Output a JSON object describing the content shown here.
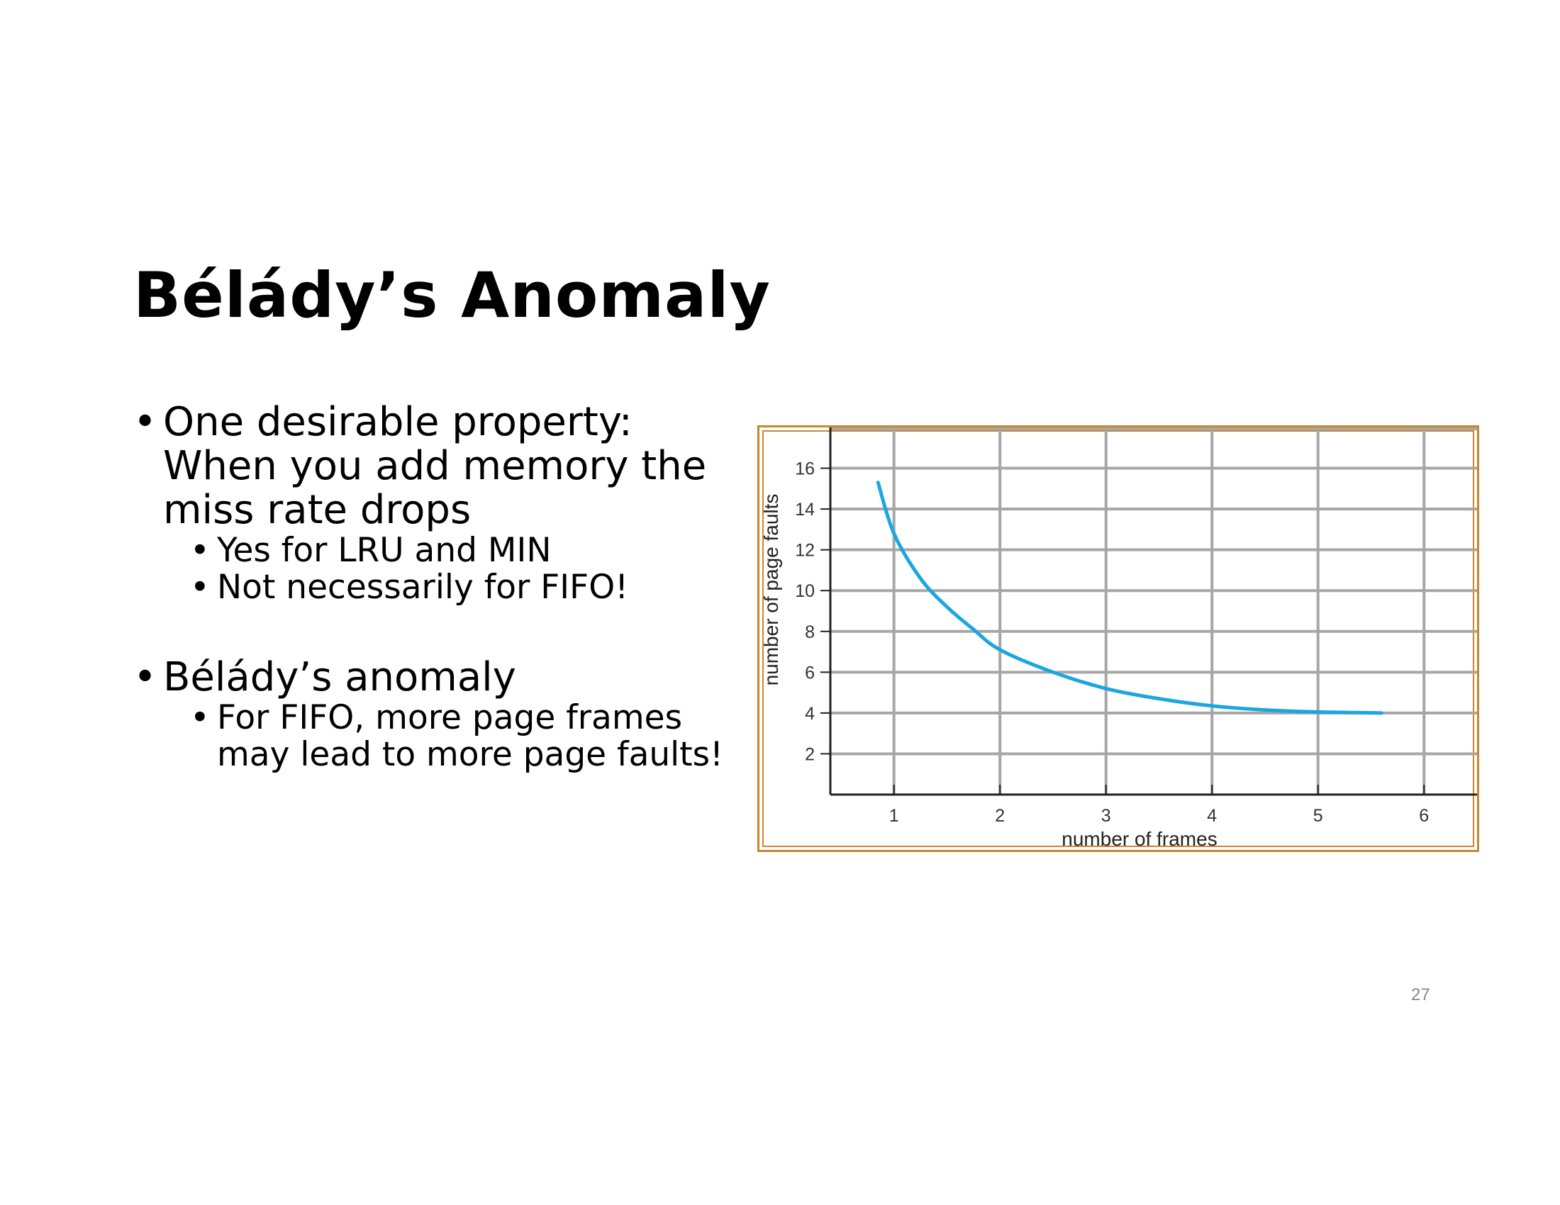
{
  "slide": {
    "title": "Bélády’s Anomaly",
    "bullets": [
      "One desirable property: When you add memory the miss rate drops",
      "Yes for LRU and MIN",
      "Not necessarily for FIFO!",
      "Bélády’s anomaly",
      "For FIFO, more page frames may lead to more page faults!"
    ],
    "page_number": "27"
  },
  "chart_data": {
    "type": "line",
    "title": "",
    "xlabel": "number of frames",
    "ylabel": "number of page faults",
    "x_ticks": [
      "1",
      "2",
      "3",
      "4",
      "5",
      "6"
    ],
    "y_ticks": [
      "2",
      "4",
      "6",
      "8",
      "10",
      "12",
      "14",
      "16"
    ],
    "xlim": [
      0.4,
      6.5
    ],
    "ylim": [
      0,
      18
    ],
    "grid": true,
    "line_color": "#1ba6e0",
    "series": [
      {
        "name": "",
        "x": [
          0.85,
          1.0,
          1.25,
          1.5,
          1.75,
          2.0,
          2.5,
          3.0,
          3.5,
          4.0,
          4.5,
          5.0,
          5.6
        ],
        "y": [
          15.3,
          12.8,
          10.6,
          9.2,
          8.1,
          7.1,
          6.0,
          5.2,
          4.7,
          4.35,
          4.15,
          4.05,
          4.0
        ]
      }
    ]
  }
}
